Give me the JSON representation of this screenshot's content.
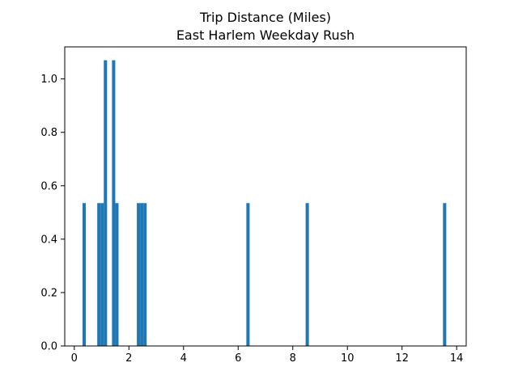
{
  "chart_data": {
    "type": "bar",
    "title": "Trip Distance (Miles)",
    "subtitle": "East Harlem Weekday Rush",
    "xlabel": "",
    "ylabel": "",
    "xlim": [
      -0.35,
      14.35
    ],
    "ylim": [
      0.0,
      1.12
    ],
    "grid": false,
    "bar_color": "#1f77b4",
    "x_ticks": [
      0,
      2,
      4,
      6,
      8,
      10,
      12,
      14
    ],
    "x_tick_labels": [
      "0",
      "2",
      "4",
      "6",
      "8",
      "10",
      "12",
      "14"
    ],
    "y_ticks": [
      0.0,
      0.2,
      0.4,
      0.6,
      0.8,
      1.0
    ],
    "y_tick_labels": [
      "0.0",
      "0.2",
      "0.4",
      "0.6",
      "0.8",
      "1.0"
    ],
    "bins": [
      {
        "start": 0.3,
        "end": 0.42,
        "value": 0.535
      },
      {
        "start": 0.84,
        "end": 0.96,
        "value": 0.535
      },
      {
        "start": 0.96,
        "end": 1.08,
        "value": 0.535
      },
      {
        "start": 1.08,
        "end": 1.2,
        "value": 1.07
      },
      {
        "start": 1.38,
        "end": 1.5,
        "value": 1.07
      },
      {
        "start": 1.5,
        "end": 1.62,
        "value": 0.535
      },
      {
        "start": 2.29,
        "end": 2.41,
        "value": 0.535
      },
      {
        "start": 2.41,
        "end": 2.53,
        "value": 0.535
      },
      {
        "start": 2.53,
        "end": 2.65,
        "value": 0.535
      },
      {
        "start": 6.3,
        "end": 6.42,
        "value": 0.535
      },
      {
        "start": 8.47,
        "end": 8.59,
        "value": 0.535
      },
      {
        "start": 13.5,
        "end": 13.62,
        "value": 0.535
      }
    ]
  }
}
